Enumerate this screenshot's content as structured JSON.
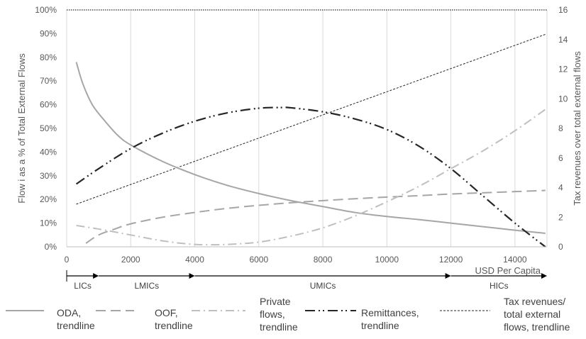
{
  "chart_data": {
    "type": "line",
    "xlabel": "USD Per Capita",
    "ylabel": "Flow i as a % of Total External Flows",
    "y2label": "Tax revenues over total external flows",
    "xlim": [
      0,
      15000
    ],
    "ylim": [
      0,
      100
    ],
    "y2lim": [
      0,
      16
    ],
    "x_ticks": [
      "0",
      "2000",
      "4000",
      "6000",
      "8000",
      "10000",
      "12000",
      "14000"
    ],
    "x_tick_values": [
      0,
      2000,
      4000,
      6000,
      8000,
      10000,
      12000,
      14000
    ],
    "y_ticks": [
      "0%",
      "10%",
      "20%",
      "30%",
      "40%",
      "50%",
      "60%",
      "70%",
      "80%",
      "90%",
      "100%"
    ],
    "y_tick_values": [
      0,
      10,
      20,
      30,
      40,
      50,
      60,
      70,
      80,
      90,
      100
    ],
    "y2_ticks": [
      "0",
      "2",
      "4",
      "6",
      "8",
      "10",
      "12",
      "14",
      "16"
    ],
    "y2_tick_values": [
      0,
      2,
      4,
      6,
      8,
      10,
      12,
      14,
      16
    ],
    "grid": "vertical",
    "legend_position": "bottom",
    "series": [
      {
        "name": "ODA, trendline",
        "axis": "left",
        "color": "#a6a6a6",
        "dash": "solid",
        "x": [
          300,
          500,
          800,
          1200,
          1600,
          2000,
          3000,
          4000,
          5000,
          6000,
          7000,
          8000,
          9000,
          10000,
          11000,
          12000,
          13000,
          14000,
          14950
        ],
        "y": [
          78,
          69,
          60,
          53,
          47,
          43,
          36,
          30.5,
          26,
          22.5,
          19.5,
          17,
          14.5,
          12.8,
          11.5,
          10,
          8.5,
          7,
          5.7
        ]
      },
      {
        "name": "OOF, trendline",
        "axis": "left",
        "color": "#a6a6a6",
        "dash": "long-dash",
        "x": [
          600,
          1000,
          1500,
          2000,
          3000,
          4000,
          5000,
          6000,
          7000,
          8000,
          9000,
          10000,
          11000,
          12000,
          13000,
          14000,
          14950
        ],
        "y": [
          1.5,
          5,
          7.5,
          9.7,
          12.5,
          14.5,
          16.2,
          17.5,
          18.6,
          19.5,
          20.3,
          21,
          21.6,
          22.3,
          22.8,
          23.3,
          23.8
        ]
      },
      {
        "name": "Private flows, trendline",
        "axis": "left",
        "color": "#bfbfbf",
        "dash": "dash-dot",
        "x": [
          300,
          1000,
          2000,
          3000,
          4000,
          5000,
          6000,
          7000,
          8000,
          9000,
          10000,
          11000,
          12000,
          13000,
          14000,
          14950
        ],
        "y": [
          9,
          7.5,
          5,
          2.5,
          1,
          1,
          2,
          4.5,
          8,
          13,
          19,
          25.5,
          33,
          40.5,
          49,
          58
        ]
      },
      {
        "name": "Remittances, trendline",
        "axis": "left",
        "color": "#262626",
        "dash": "long-dash-dot-dot",
        "x": [
          300,
          1000,
          2000,
          3000,
          4000,
          5000,
          6000,
          6700,
          7000,
          8000,
          9000,
          10000,
          11000,
          12000,
          13000,
          14000,
          14950
        ],
        "y": [
          26.5,
          33,
          41.5,
          48,
          53,
          56.5,
          58.5,
          58.8,
          58.7,
          57,
          54,
          49.5,
          42.5,
          33,
          21.5,
          10,
          0
        ]
      },
      {
        "name": "Tax revenues/ total external flows, trendline",
        "axis": "right",
        "color": "#262626",
        "dash": "short-dash",
        "x": [
          300,
          14950
        ],
        "y": [
          2.88,
          14.35
        ]
      }
    ],
    "income_groups": [
      {
        "label": "LICs",
        "from": 0,
        "to": 1000
      },
      {
        "label": "LMICs",
        "from": 1000,
        "to": 4000
      },
      {
        "label": "UMICs",
        "from": 4000,
        "to": 12000
      },
      {
        "label": "HICs",
        "from": 12000,
        "to": 15000
      }
    ]
  },
  "legend": [
    {
      "lines": [
        "ODA,",
        "trendline"
      ]
    },
    {
      "lines": [
        "OOF,",
        "trendline"
      ]
    },
    {
      "lines": [
        "Private",
        "flows,",
        "trendline"
      ]
    },
    {
      "lines": [
        "Remittances,",
        "trendline"
      ]
    },
    {
      "lines": [
        "Tax revenues/",
        "total external",
        "flows, trendline"
      ]
    }
  ]
}
